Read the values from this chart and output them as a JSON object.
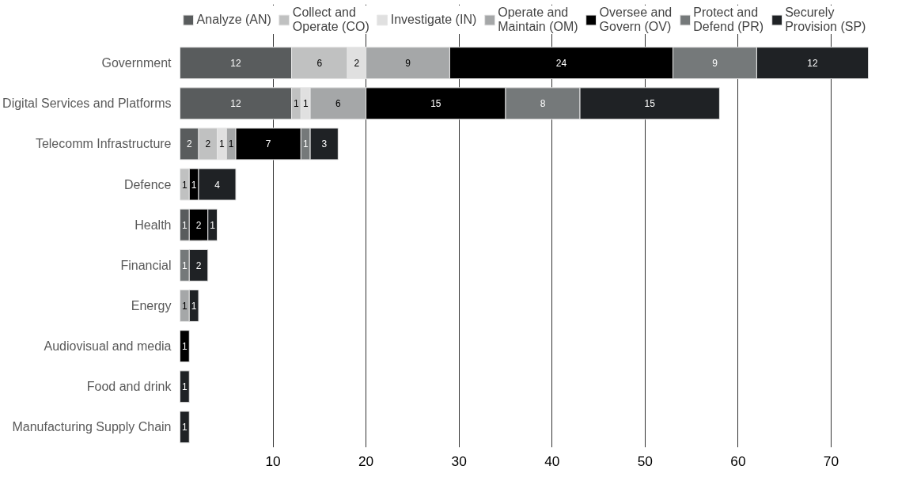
{
  "chart_data": {
    "type": "bar",
    "orientation": "horizontal",
    "stacked": true,
    "data_labels": true,
    "grid": "x",
    "legend": "top",
    "categories": [
      "Government",
      "Digital Services and Platforms",
      "Telecomm Infrastructure",
      "Defence",
      "Health",
      "Financial",
      "Energy",
      "Audiovisual and media",
      "Food and drink",
      "Manufacturing Supply Chain"
    ],
    "xlim": [
      0,
      74
    ],
    "xticks": [
      10,
      20,
      30,
      40,
      50,
      60,
      70
    ],
    "series": [
      {
        "name": "Analyze (AN)",
        "color": "#595c5d",
        "values": [
          12,
          12,
          2,
          null,
          1,
          null,
          null,
          null,
          null,
          null
        ]
      },
      {
        "name": "Collect and Operate (CO)",
        "color": "#c0c1c1",
        "values": [
          6,
          1,
          2,
          1,
          null,
          null,
          null,
          null,
          null,
          null
        ]
      },
      {
        "name": "Investigate (IN)",
        "color": "#e0e0e0",
        "values": [
          2,
          1,
          1,
          null,
          null,
          null,
          null,
          null,
          null,
          null
        ]
      },
      {
        "name": "Operate and Maintain (OM)",
        "color": "#a5a7a8",
        "values": [
          9,
          6,
          1,
          null,
          null,
          null,
          1,
          null,
          null,
          null
        ]
      },
      {
        "name": "Oversee and Govern (OV)",
        "color": "#000000",
        "values": [
          24,
          15,
          7,
          1,
          2,
          null,
          null,
          1,
          null,
          null
        ]
      },
      {
        "name": "Protect and Defend (PR)",
        "color": "#75797a",
        "values": [
          9,
          8,
          1,
          null,
          null,
          1,
          null,
          null,
          null,
          null
        ]
      },
      {
        "name": "Securely Provision (SP)",
        "color": "#1f2225",
        "values": [
          12,
          15,
          3,
          4,
          1,
          2,
          1,
          null,
          1,
          1
        ]
      }
    ]
  }
}
